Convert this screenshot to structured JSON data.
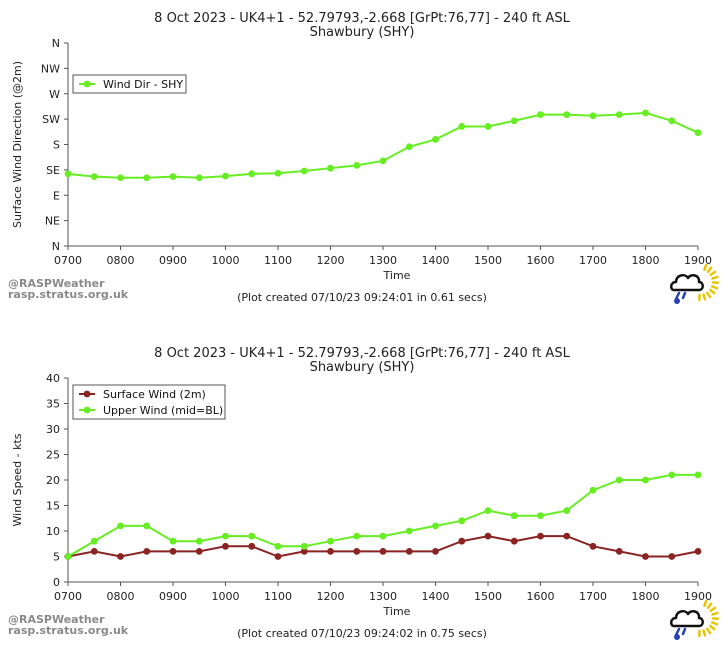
{
  "chart_data": [
    {
      "type": "line",
      "title": "8 Oct 2023 - UK4+1 - 52.79793,-2.668 [GrPt:76,77]  - 240 ft ASL",
      "subtitle": "Shawbury (SHY)",
      "xlabel": "Time",
      "ylabel": "Surface Wind Direction (@2m)",
      "x_ticks": [
        "0700",
        "0800",
        "0900",
        "1000",
        "1100",
        "1200",
        "1300",
        "1400",
        "1500",
        "1600",
        "1700",
        "1800",
        "1900"
      ],
      "y_ticks": [
        "N",
        "NE",
        "E",
        "SE",
        "S",
        "SW",
        "W",
        "NW",
        "N"
      ],
      "ylim": [
        0,
        360
      ],
      "xlim": [
        700,
        1900
      ],
      "x": [
        "0700",
        "0730",
        "0800",
        "0830",
        "0900",
        "0930",
        "1000",
        "1030",
        "1100",
        "1130",
        "1200",
        "1230",
        "1300",
        "1330",
        "1400",
        "1430",
        "1500",
        "1530",
        "1600",
        "1630",
        "1700",
        "1730",
        "1800",
        "1830",
        "1900"
      ],
      "series": [
        {
          "name": "Wind Dir - SHY",
          "color": "#66ee22",
          "values": [
            128,
            123,
            121,
            121,
            123,
            121,
            124,
            128,
            129,
            133,
            138,
            143,
            151,
            176,
            189,
            212,
            212,
            222,
            233,
            233,
            231,
            233,
            236,
            222,
            201
          ]
        }
      ],
      "legend": "top-left",
      "grid": false,
      "credit_line1": "@RASPWeather",
      "credit_line2": "rasp.stratus.org.uk",
      "created": "(Plot created 07/10/23 09:24:01 in 0.61 secs)"
    },
    {
      "type": "line",
      "title": "8 Oct 2023 - UK4+1 - 52.79793,-2.668 [GrPt:76,77]  - 240 ft ASL",
      "subtitle": "Shawbury (SHY)",
      "xlabel": "Time",
      "ylabel": "Wind Speed - kts",
      "x_ticks": [
        "0700",
        "0800",
        "0900",
        "1000",
        "1100",
        "1200",
        "1300",
        "1400",
        "1500",
        "1600",
        "1700",
        "1800",
        "1900"
      ],
      "y_ticks": [
        "0",
        "5",
        "10",
        "15",
        "20",
        "25",
        "30",
        "35",
        "40"
      ],
      "ylim": [
        0,
        40
      ],
      "xlim": [
        700,
        1900
      ],
      "x": [
        "0700",
        "0730",
        "0800",
        "0830",
        "0900",
        "0930",
        "1000",
        "1030",
        "1100",
        "1130",
        "1200",
        "1230",
        "1300",
        "1330",
        "1400",
        "1430",
        "1500",
        "1530",
        "1600",
        "1630",
        "1700",
        "1730",
        "1800",
        "1830",
        "1900"
      ],
      "series": [
        {
          "name": "Surface Wind (2m)",
          "color": "#8b2323",
          "values": [
            5,
            6,
            5,
            6,
            6,
            6,
            7,
            7,
            5,
            6,
            6,
            6,
            6,
            6,
            6,
            8,
            9,
            8,
            9,
            9,
            7,
            6,
            5,
            5,
            6
          ]
        },
        {
          "name": "Upper Wind (mid=BL)",
          "color": "#66ee22",
          "values": [
            5,
            8,
            11,
            11,
            8,
            8,
            9,
            9,
            7,
            7,
            8,
            9,
            9,
            10,
            11,
            12,
            14,
            13,
            13,
            14,
            18,
            20,
            20,
            21,
            21
          ]
        }
      ],
      "legend": "top-left",
      "grid": false,
      "credit_line1": "@RASPWeather",
      "credit_line2": "rasp.stratus.org.uk",
      "created": "(Plot created 07/10/23 09:24:02 in 0.75 secs)"
    }
  ]
}
